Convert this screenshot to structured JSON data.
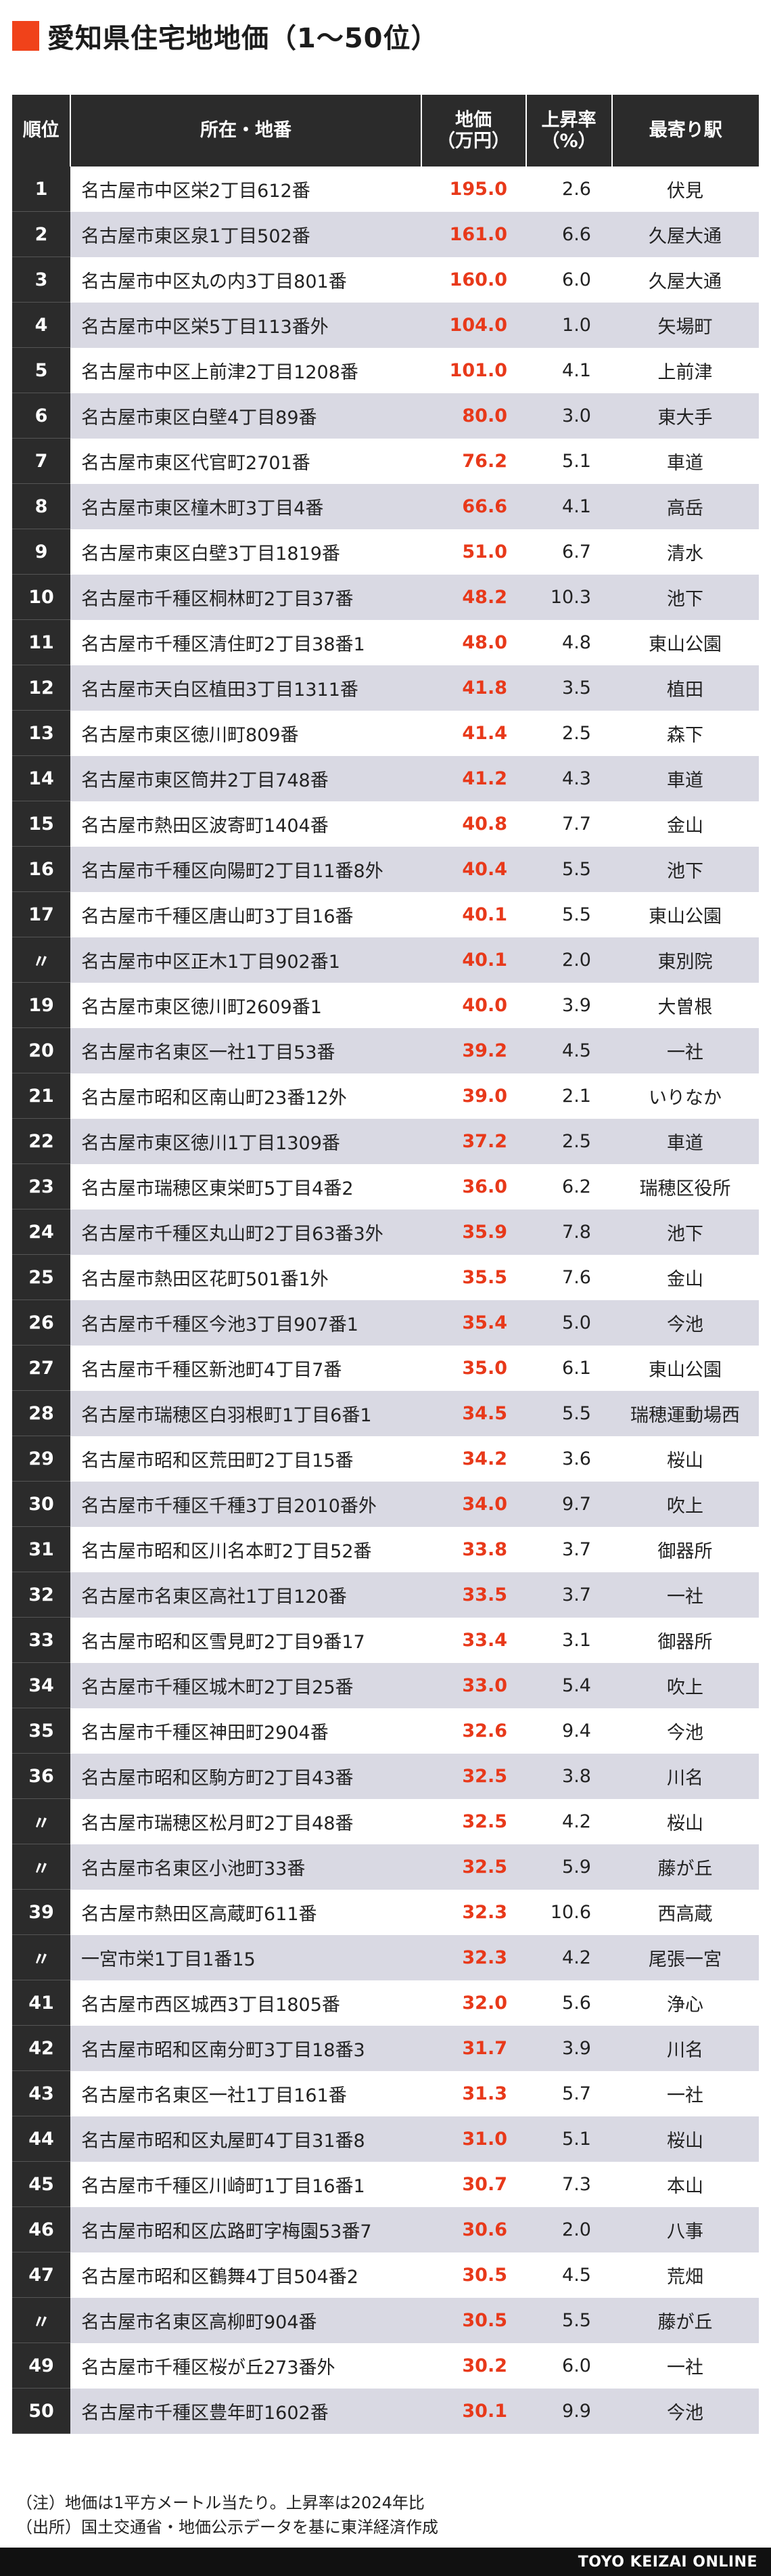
{
  "title": "愛知県住宅地地価（1〜50位）",
  "colors": {
    "accent": "#f0421a",
    "header_bg": "#2b2b2b",
    "price": "#e8391a",
    "stripe": "#d9d9e3"
  },
  "chart_data": {
    "type": "table",
    "columns": [
      "順位",
      "所在・地番",
      "地価\n（万円）",
      "上昇率\n（%）",
      "最寄り駅"
    ],
    "rows": [
      {
        "rank": "1",
        "address": "名古屋市中区栄2丁目612番",
        "price": "195.0",
        "rate": "2.6",
        "station": "伏見"
      },
      {
        "rank": "2",
        "address": "名古屋市東区泉1丁目502番",
        "price": "161.0",
        "rate": "6.6",
        "station": "久屋大通"
      },
      {
        "rank": "3",
        "address": "名古屋市中区丸の内3丁目801番",
        "price": "160.0",
        "rate": "6.0",
        "station": "久屋大通"
      },
      {
        "rank": "4",
        "address": "名古屋市中区栄5丁目113番外",
        "price": "104.0",
        "rate": "1.0",
        "station": "矢場町"
      },
      {
        "rank": "5",
        "address": "名古屋市中区上前津2丁目1208番",
        "price": "101.0",
        "rate": "4.1",
        "station": "上前津"
      },
      {
        "rank": "6",
        "address": "名古屋市東区白壁4丁目89番",
        "price": "80.0",
        "rate": "3.0",
        "station": "東大手"
      },
      {
        "rank": "7",
        "address": "名古屋市東区代官町2701番",
        "price": "76.2",
        "rate": "5.1",
        "station": "車道"
      },
      {
        "rank": "8",
        "address": "名古屋市東区橦木町3丁目4番",
        "price": "66.6",
        "rate": "4.1",
        "station": "高岳"
      },
      {
        "rank": "9",
        "address": "名古屋市東区白壁3丁目1819番",
        "price": "51.0",
        "rate": "6.7",
        "station": "清水"
      },
      {
        "rank": "10",
        "address": "名古屋市千種区桐林町2丁目37番",
        "price": "48.2",
        "rate": "10.3",
        "station": "池下"
      },
      {
        "rank": "11",
        "address": "名古屋市千種区清住町2丁目38番1",
        "price": "48.0",
        "rate": "4.8",
        "station": "東山公園"
      },
      {
        "rank": "12",
        "address": "名古屋市天白区植田3丁目1311番",
        "price": "41.8",
        "rate": "3.5",
        "station": "植田"
      },
      {
        "rank": "13",
        "address": "名古屋市東区徳川町809番",
        "price": "41.4",
        "rate": "2.5",
        "station": "森下"
      },
      {
        "rank": "14",
        "address": "名古屋市東区筒井2丁目748番",
        "price": "41.2",
        "rate": "4.3",
        "station": "車道"
      },
      {
        "rank": "15",
        "address": "名古屋市熱田区波寄町1404番",
        "price": "40.8",
        "rate": "7.7",
        "station": "金山"
      },
      {
        "rank": "16",
        "address": "名古屋市千種区向陽町2丁目11番8外",
        "price": "40.4",
        "rate": "5.5",
        "station": "池下"
      },
      {
        "rank": "17",
        "address": "名古屋市千種区唐山町3丁目16番",
        "price": "40.1",
        "rate": "5.5",
        "station": "東山公園"
      },
      {
        "rank": "〃",
        "address": "名古屋市中区正木1丁目902番1",
        "price": "40.1",
        "rate": "2.0",
        "station": "東別院"
      },
      {
        "rank": "19",
        "address": "名古屋市東区徳川町2609番1",
        "price": "40.0",
        "rate": "3.9",
        "station": "大曽根"
      },
      {
        "rank": "20",
        "address": "名古屋市名東区一社1丁目53番",
        "price": "39.2",
        "rate": "4.5",
        "station": "一社"
      },
      {
        "rank": "21",
        "address": "名古屋市昭和区南山町23番12外",
        "price": "39.0",
        "rate": "2.1",
        "station": "いりなか"
      },
      {
        "rank": "22",
        "address": "名古屋市東区徳川1丁目1309番",
        "price": "37.2",
        "rate": "2.5",
        "station": "車道"
      },
      {
        "rank": "23",
        "address": "名古屋市瑞穂区東栄町5丁目4番2",
        "price": "36.0",
        "rate": "6.2",
        "station": "瑞穂区役所"
      },
      {
        "rank": "24",
        "address": "名古屋市千種区丸山町2丁目63番3外",
        "price": "35.9",
        "rate": "7.8",
        "station": "池下"
      },
      {
        "rank": "25",
        "address": "名古屋市熱田区花町501番1外",
        "price": "35.5",
        "rate": "7.6",
        "station": "金山"
      },
      {
        "rank": "26",
        "address": "名古屋市千種区今池3丁目907番1",
        "price": "35.4",
        "rate": "5.0",
        "station": "今池"
      },
      {
        "rank": "27",
        "address": "名古屋市千種区新池町4丁目7番",
        "price": "35.0",
        "rate": "6.1",
        "station": "東山公園"
      },
      {
        "rank": "28",
        "address": "名古屋市瑞穂区白羽根町1丁目6番1",
        "price": "34.5",
        "rate": "5.5",
        "station": "瑞穂運動場西"
      },
      {
        "rank": "29",
        "address": "名古屋市昭和区荒田町2丁目15番",
        "price": "34.2",
        "rate": "3.6",
        "station": "桜山"
      },
      {
        "rank": "30",
        "address": "名古屋市千種区千種3丁目2010番外",
        "price": "34.0",
        "rate": "9.7",
        "station": "吹上"
      },
      {
        "rank": "31",
        "address": "名古屋市昭和区川名本町2丁目52番",
        "price": "33.8",
        "rate": "3.7",
        "station": "御器所"
      },
      {
        "rank": "32",
        "address": "名古屋市名東区高社1丁目120番",
        "price": "33.5",
        "rate": "3.7",
        "station": "一社"
      },
      {
        "rank": "33",
        "address": "名古屋市昭和区雪見町2丁目9番17",
        "price": "33.4",
        "rate": "3.1",
        "station": "御器所"
      },
      {
        "rank": "34",
        "address": "名古屋市千種区城木町2丁目25番",
        "price": "33.0",
        "rate": "5.4",
        "station": "吹上"
      },
      {
        "rank": "35",
        "address": "名古屋市千種区神田町2904番",
        "price": "32.6",
        "rate": "9.4",
        "station": "今池"
      },
      {
        "rank": "36",
        "address": "名古屋市昭和区駒方町2丁目43番",
        "price": "32.5",
        "rate": "3.8",
        "station": "川名"
      },
      {
        "rank": "〃",
        "address": "名古屋市瑞穂区松月町2丁目48番",
        "price": "32.5",
        "rate": "4.2",
        "station": "桜山"
      },
      {
        "rank": "〃",
        "address": "名古屋市名東区小池町33番",
        "price": "32.5",
        "rate": "5.9",
        "station": "藤が丘"
      },
      {
        "rank": "39",
        "address": "名古屋市熱田区高蔵町611番",
        "price": "32.3",
        "rate": "10.6",
        "station": "西高蔵"
      },
      {
        "rank": "〃",
        "address": "一宮市栄1丁目1番15",
        "price": "32.3",
        "rate": "4.2",
        "station": "尾張一宮"
      },
      {
        "rank": "41",
        "address": "名古屋市西区城西3丁目1805番",
        "price": "32.0",
        "rate": "5.6",
        "station": "浄心"
      },
      {
        "rank": "42",
        "address": "名古屋市昭和区南分町3丁目18番3",
        "price": "31.7",
        "rate": "3.9",
        "station": "川名"
      },
      {
        "rank": "43",
        "address": "名古屋市名東区一社1丁目161番",
        "price": "31.3",
        "rate": "5.7",
        "station": "一社"
      },
      {
        "rank": "44",
        "address": "名古屋市昭和区丸屋町4丁目31番8",
        "price": "31.0",
        "rate": "5.1",
        "station": "桜山"
      },
      {
        "rank": "45",
        "address": "名古屋市千種区川崎町1丁目16番1",
        "price": "30.7",
        "rate": "7.3",
        "station": "本山"
      },
      {
        "rank": "46",
        "address": "名古屋市昭和区広路町字梅園53番7",
        "price": "30.6",
        "rate": "2.0",
        "station": "八事"
      },
      {
        "rank": "47",
        "address": "名古屋市昭和区鶴舞4丁目504番2",
        "price": "30.5",
        "rate": "4.5",
        "station": "荒畑"
      },
      {
        "rank": "〃",
        "address": "名古屋市名東区高柳町904番",
        "price": "30.5",
        "rate": "5.5",
        "station": "藤が丘"
      },
      {
        "rank": "49",
        "address": "名古屋市千種区桜が丘273番外",
        "price": "30.2",
        "rate": "6.0",
        "station": "一社"
      },
      {
        "rank": "50",
        "address": "名古屋市千種区豊年町1602番",
        "price": "30.1",
        "rate": "9.9",
        "station": "今池"
      }
    ]
  },
  "notes": [
    "（注）地価は1平方メートル当たり。上昇率は2024年比",
    "（出所）国土交通省・地価公示データを基に東洋経済作成"
  ],
  "footer": "TOYO KEIZAI ONLINE"
}
